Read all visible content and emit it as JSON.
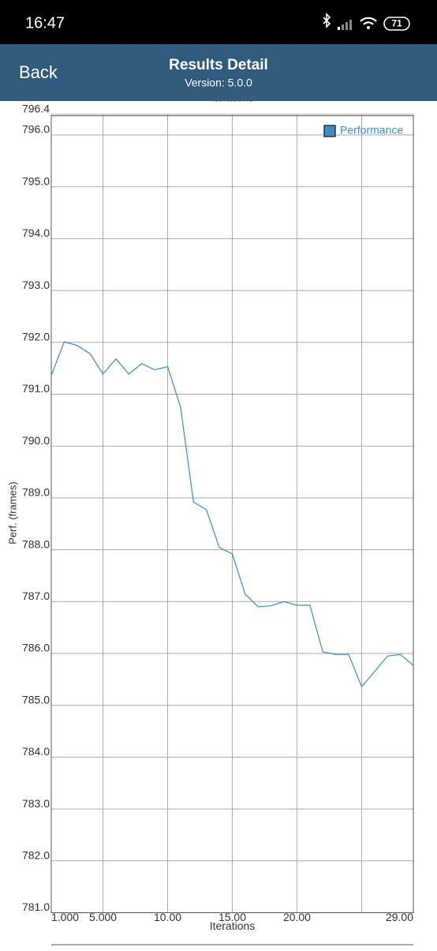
{
  "status_bar": {
    "time": "16:47",
    "battery": "71"
  },
  "header": {
    "back": "Back",
    "title": "Results Detail",
    "subtitle": "Version: 5.0.0"
  },
  "clipped_label": "Iterations",
  "chart_data": {
    "type": "line",
    "y_label": "Perf. (frames)",
    "x_label": "Iterations",
    "xlim": [
      1,
      29
    ],
    "ylim": [
      781,
      796.4
    ],
    "xticks": [
      {
        "value": 1,
        "label": "1.000"
      },
      {
        "value": 5,
        "label": "5.000"
      },
      {
        "value": 10,
        "label": "10.00"
      },
      {
        "value": 15,
        "label": "15.00"
      },
      {
        "value": 20,
        "label": "20.00"
      },
      {
        "value": 25,
        "label": null
      },
      {
        "value": 29,
        "label": "29.00"
      }
    ],
    "yticks": [
      {
        "value": 781,
        "label": "781.0"
      },
      {
        "value": 782,
        "label": "782.0"
      },
      {
        "value": 783,
        "label": "783.0"
      },
      {
        "value": 784,
        "label": "784.0"
      },
      {
        "value": 785,
        "label": "785.0"
      },
      {
        "value": 786,
        "label": "786.0"
      },
      {
        "value": 787,
        "label": "787.0"
      },
      {
        "value": 788,
        "label": "788.0"
      },
      {
        "value": 789,
        "label": "789.0"
      },
      {
        "value": 790,
        "label": "790.0"
      },
      {
        "value": 791,
        "label": "791.0"
      },
      {
        "value": 792,
        "label": "792.0"
      },
      {
        "value": 793,
        "label": "793.0"
      },
      {
        "value": 794,
        "label": "794.0"
      },
      {
        "value": 795,
        "label": "795.0"
      },
      {
        "value": 796,
        "label": "796.0"
      },
      796.4
    ],
    "grid": true,
    "legend": "top-right",
    "x": [
      1,
      2,
      3,
      4,
      5,
      6,
      7,
      8,
      9,
      10,
      11,
      12,
      13,
      14,
      15,
      16,
      17,
      18,
      19,
      20,
      21,
      22,
      23,
      24,
      25,
      26,
      27,
      28,
      29
    ],
    "series": [
      {
        "name": "Performance",
        "color": "#3a8fc0",
        "values": [
          791.36,
          792.01,
          791.94,
          791.78,
          791.39,
          791.68,
          791.39,
          791.59,
          791.47,
          791.53,
          790.75,
          788.92,
          788.77,
          788.04,
          787.92,
          787.14,
          786.9,
          786.92,
          787.0,
          786.93,
          786.93,
          786.03,
          785.98,
          785.98,
          785.36,
          785.65,
          785.95,
          785.98,
          785.77
        ]
      }
    ]
  }
}
